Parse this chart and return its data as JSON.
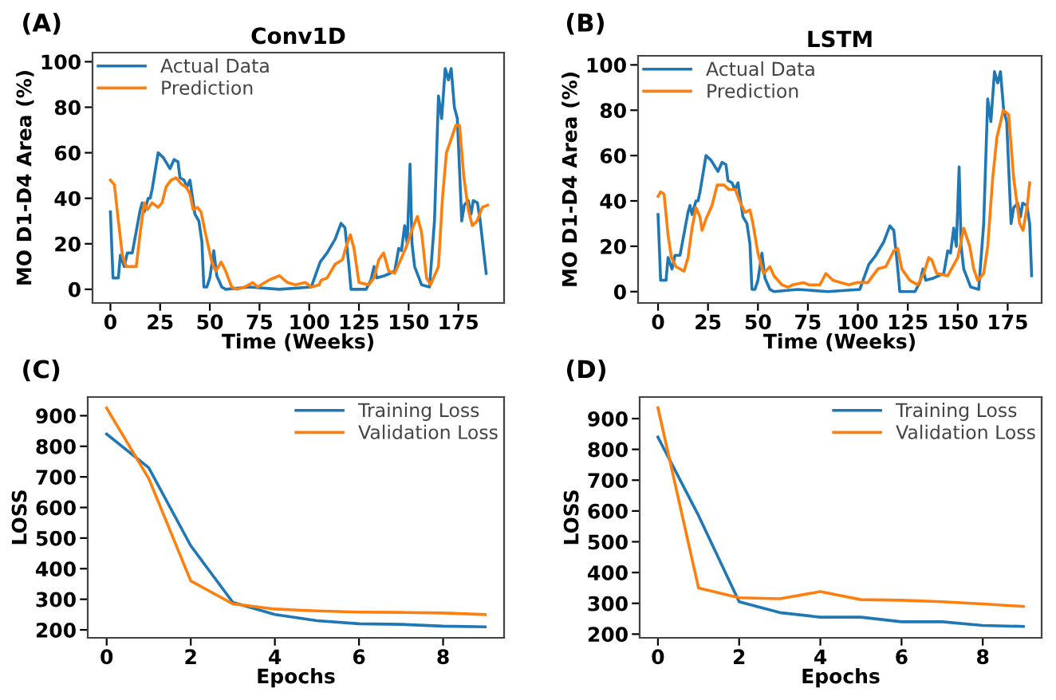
{
  "chart_data": [
    {
      "type": "line",
      "title": "Conv1D",
      "xlabel": "Time (Weeks)",
      "ylabel": "MO D1-D4 Area (%)",
      "annotations": [
        "(A)"
      ],
      "legend": "top left",
      "grid": false,
      "xlim": [
        -9,
        198
      ],
      "ylim": [
        -6,
        104
      ],
      "xticks": [
        0,
        25,
        50,
        75,
        100,
        125,
        150,
        175
      ],
      "yticks": [
        0,
        20,
        40,
        60,
        80,
        100
      ],
      "series": [
        {
          "name": "Actual Data",
          "color": "#1f77b4",
          "x": [
            0,
            1.3,
            4,
            5,
            7,
            8.5,
            11,
            15,
            16,
            17,
            19,
            20,
            21,
            24,
            26.5,
            30,
            32,
            34,
            35,
            37,
            38.5,
            40,
            42.5,
            44.5,
            46,
            47,
            48.5,
            50,
            52,
            53.5,
            56,
            58,
            70,
            85,
            101,
            105.5,
            109,
            113,
            116,
            118,
            120,
            121,
            128.6,
            131,
            132.6,
            134,
            138,
            143,
            145,
            146.4,
            148,
            149.3,
            150.7,
            151.7,
            153,
            156.5,
            160.5,
            163,
            165,
            166.6,
            168.4,
            170,
            171.4,
            173,
            174.5,
            176.7,
            178,
            180,
            181.4,
            182.5,
            184.6,
            186,
            189
          ],
          "values": [
            34,
            5,
            5,
            15,
            10,
            16,
            16,
            35,
            38,
            34,
            40,
            40,
            44,
            60,
            58,
            53,
            57,
            56,
            49,
            48,
            45,
            48,
            33,
            30,
            21,
            1,
            1,
            5,
            17,
            6,
            1,
            0,
            1,
            0,
            1,
            12,
            16,
            22,
            29,
            27,
            10,
            0,
            0,
            4,
            10,
            5,
            6,
            8,
            18,
            17,
            28,
            20,
            55,
            20,
            10,
            2,
            1,
            30,
            85,
            75,
            97,
            92,
            97,
            80,
            75,
            30,
            37,
            39,
            33,
            39,
            38,
            30,
            7
          ]
        },
        {
          "name": "Prediction",
          "color": "#ff7f0e",
          "x": [
            0,
            2,
            4,
            6,
            8,
            13,
            15,
            17,
            18.5,
            21,
            24,
            26,
            28,
            30.5,
            33,
            36,
            38,
            40,
            41.6,
            43.8,
            45.6,
            47.7,
            51,
            53,
            55.7,
            58,
            61,
            63.7,
            67.6,
            71.6,
            74,
            79.6,
            85,
            89,
            93,
            98,
            101,
            105,
            106,
            109,
            113,
            116.7,
            119,
            120.7,
            122.5,
            125,
            130,
            132.6,
            135,
            137.4,
            140,
            143,
            148.5,
            152.5,
            154.4,
            156.5,
            159,
            161,
            165,
            167,
            169,
            171,
            173.7,
            175.6,
            177.7,
            180,
            182,
            184.4,
            187,
            189.7
          ],
          "values": [
            48,
            46,
            30,
            15,
            10,
            10,
            25,
            38,
            35,
            38,
            36,
            38,
            45,
            48,
            49,
            46,
            45,
            42,
            35,
            36,
            34,
            25,
            12,
            8,
            12,
            8,
            1,
            0,
            1,
            3,
            1,
            4,
            6,
            3,
            2,
            3,
            1,
            2,
            4,
            5,
            11,
            13,
            20,
            24,
            18,
            3,
            2,
            5,
            13,
            16,
            8,
            7,
            18,
            28,
            32,
            25,
            5,
            2,
            10,
            40,
            60,
            65,
            72,
            72,
            50,
            35,
            28,
            30,
            36,
            37
          ]
        }
      ]
    },
    {
      "type": "line",
      "title": "LSTM",
      "xlabel": "Time (Weeks)",
      "ylabel": "MO D1-D4 Area (%)",
      "annotations": [
        "(B)"
      ],
      "legend": "top left",
      "grid": false,
      "xlim": [
        -10,
        192
      ],
      "ylim": [
        -5,
        104
      ],
      "xticks": [
        0,
        25,
        50,
        75,
        100,
        125,
        150,
        175
      ],
      "yticks": [
        0,
        20,
        40,
        60,
        80,
        100
      ],
      "series": [
        {
          "name": "Actual Data",
          "color": "#1f77b4",
          "x": [
            0,
            1.3,
            4,
            5,
            7,
            8.5,
            11,
            15,
            16,
            17,
            19,
            20,
            21,
            24,
            26.5,
            30,
            32,
            34,
            35,
            37,
            38.5,
            40,
            42.5,
            44.5,
            46,
            47,
            48.5,
            50,
            52,
            53.5,
            56,
            58,
            70,
            85,
            101,
            105.5,
            109,
            113,
            116,
            118,
            120,
            121,
            128.6,
            131,
            132.6,
            134,
            138,
            143,
            145,
            146.4,
            148,
            149.3,
            150.7,
            151.7,
            153,
            156.5,
            160.5,
            163,
            165,
            166.6,
            168.4,
            170,
            171.4,
            173,
            174.5,
            176.7,
            178,
            180,
            181.4,
            182.5,
            184.6,
            186,
            187
          ],
          "values": [
            34,
            5,
            5,
            15,
            10,
            16,
            16,
            35,
            38,
            34,
            40,
            40,
            44,
            60,
            58,
            53,
            57,
            56,
            49,
            48,
            45,
            48,
            33,
            30,
            21,
            1,
            1,
            5,
            17,
            6,
            1,
            0,
            1,
            0,
            1,
            12,
            16,
            22,
            29,
            27,
            10,
            0,
            0,
            4,
            10,
            5,
            6,
            8,
            18,
            17,
            28,
            20,
            55,
            20,
            10,
            2,
            1,
            30,
            85,
            75,
            97,
            92,
            97,
            80,
            75,
            30,
            37,
            39,
            33,
            39,
            38,
            30,
            7
          ]
        },
        {
          "name": "Prediction",
          "color": "#ff7f0e",
          "x": [
            0,
            1.3,
            3,
            5,
            6.7,
            9,
            13,
            15,
            17,
            19,
            21,
            22,
            24,
            27,
            29.6,
            33,
            35.5,
            38.7,
            40.8,
            43.5,
            46,
            47.5,
            50,
            52.8,
            56,
            58,
            62,
            65,
            67.5,
            72.8,
            75.5,
            81,
            84,
            87.5,
            91.5,
            95.5,
            99.5,
            105,
            110,
            114,
            118,
            120,
            122,
            126,
            130,
            133,
            135.5,
            137,
            139.5,
            145,
            150,
            153,
            156,
            158,
            160,
            163,
            165,
            167.5,
            169.6,
            171.5,
            172.8,
            175.5,
            178,
            181,
            182.7,
            184.8,
            186
          ],
          "values": [
            42,
            44,
            43,
            25,
            15,
            11,
            9,
            15,
            28,
            37,
            33,
            27,
            32,
            38,
            47,
            47,
            45,
            45,
            40,
            35,
            36,
            30,
            17,
            8,
            11,
            7,
            3,
            2,
            3,
            4,
            3,
            3,
            8,
            5,
            4,
            3,
            4,
            4,
            10,
            11,
            18,
            19,
            10,
            5,
            3,
            8,
            15,
            14,
            8,
            7,
            15,
            28,
            20,
            10,
            5,
            8,
            20,
            50,
            68,
            75,
            80,
            78,
            50,
            30,
            27,
            38,
            48
          ]
        }
      ]
    },
    {
      "type": "line",
      "xlabel": "Epochs",
      "ylabel": "LOSS",
      "annotations": [
        "(C)"
      ],
      "legend": "top right",
      "grid": false,
      "xlim": [
        -0.45,
        9.45
      ],
      "ylim": [
        174,
        961
      ],
      "xticks": [
        0,
        2,
        4,
        6,
        8
      ],
      "yticks": [
        200,
        300,
        400,
        500,
        600,
        700,
        800,
        900
      ],
      "series": [
        {
          "name": "Training Loss",
          "color": "#1f77b4",
          "x": [
            0,
            1,
            2,
            3,
            4,
            5,
            6,
            7,
            8,
            9
          ],
          "values": [
            840,
            730,
            475,
            290,
            250,
            230,
            220,
            218,
            212,
            210
          ]
        },
        {
          "name": "Validation Loss",
          "color": "#ff7f0e",
          "x": [
            0,
            1,
            2,
            3,
            4,
            5,
            6,
            7,
            8,
            9
          ],
          "values": [
            925,
            695,
            360,
            285,
            268,
            262,
            258,
            257,
            255,
            250
          ]
        }
      ]
    },
    {
      "type": "line",
      "xlabel": "Epochs",
      "ylabel": "LOSS",
      "annotations": [
        "(D)"
      ],
      "legend": "top right",
      "grid": false,
      "xlim": [
        -0.45,
        9.45
      ],
      "ylim": [
        188,
        970
      ],
      "xticks": [
        0,
        2,
        4,
        6,
        8
      ],
      "yticks": [
        200,
        300,
        400,
        500,
        600,
        700,
        800,
        900
      ],
      "series": [
        {
          "name": "Training Loss",
          "color": "#1f77b4",
          "x": [
            0,
            1,
            2,
            3,
            4,
            5,
            6,
            7,
            8,
            9
          ],
          "values": [
            840,
            585,
            305,
            270,
            255,
            255,
            240,
            240,
            228,
            225
          ]
        },
        {
          "name": "Validation Loss",
          "color": "#ff7f0e",
          "x": [
            0,
            1,
            2,
            3,
            4,
            5,
            6,
            7,
            8,
            9
          ],
          "values": [
            935,
            350,
            318,
            315,
            338,
            312,
            310,
            305,
            298,
            290
          ]
        }
      ]
    }
  ]
}
